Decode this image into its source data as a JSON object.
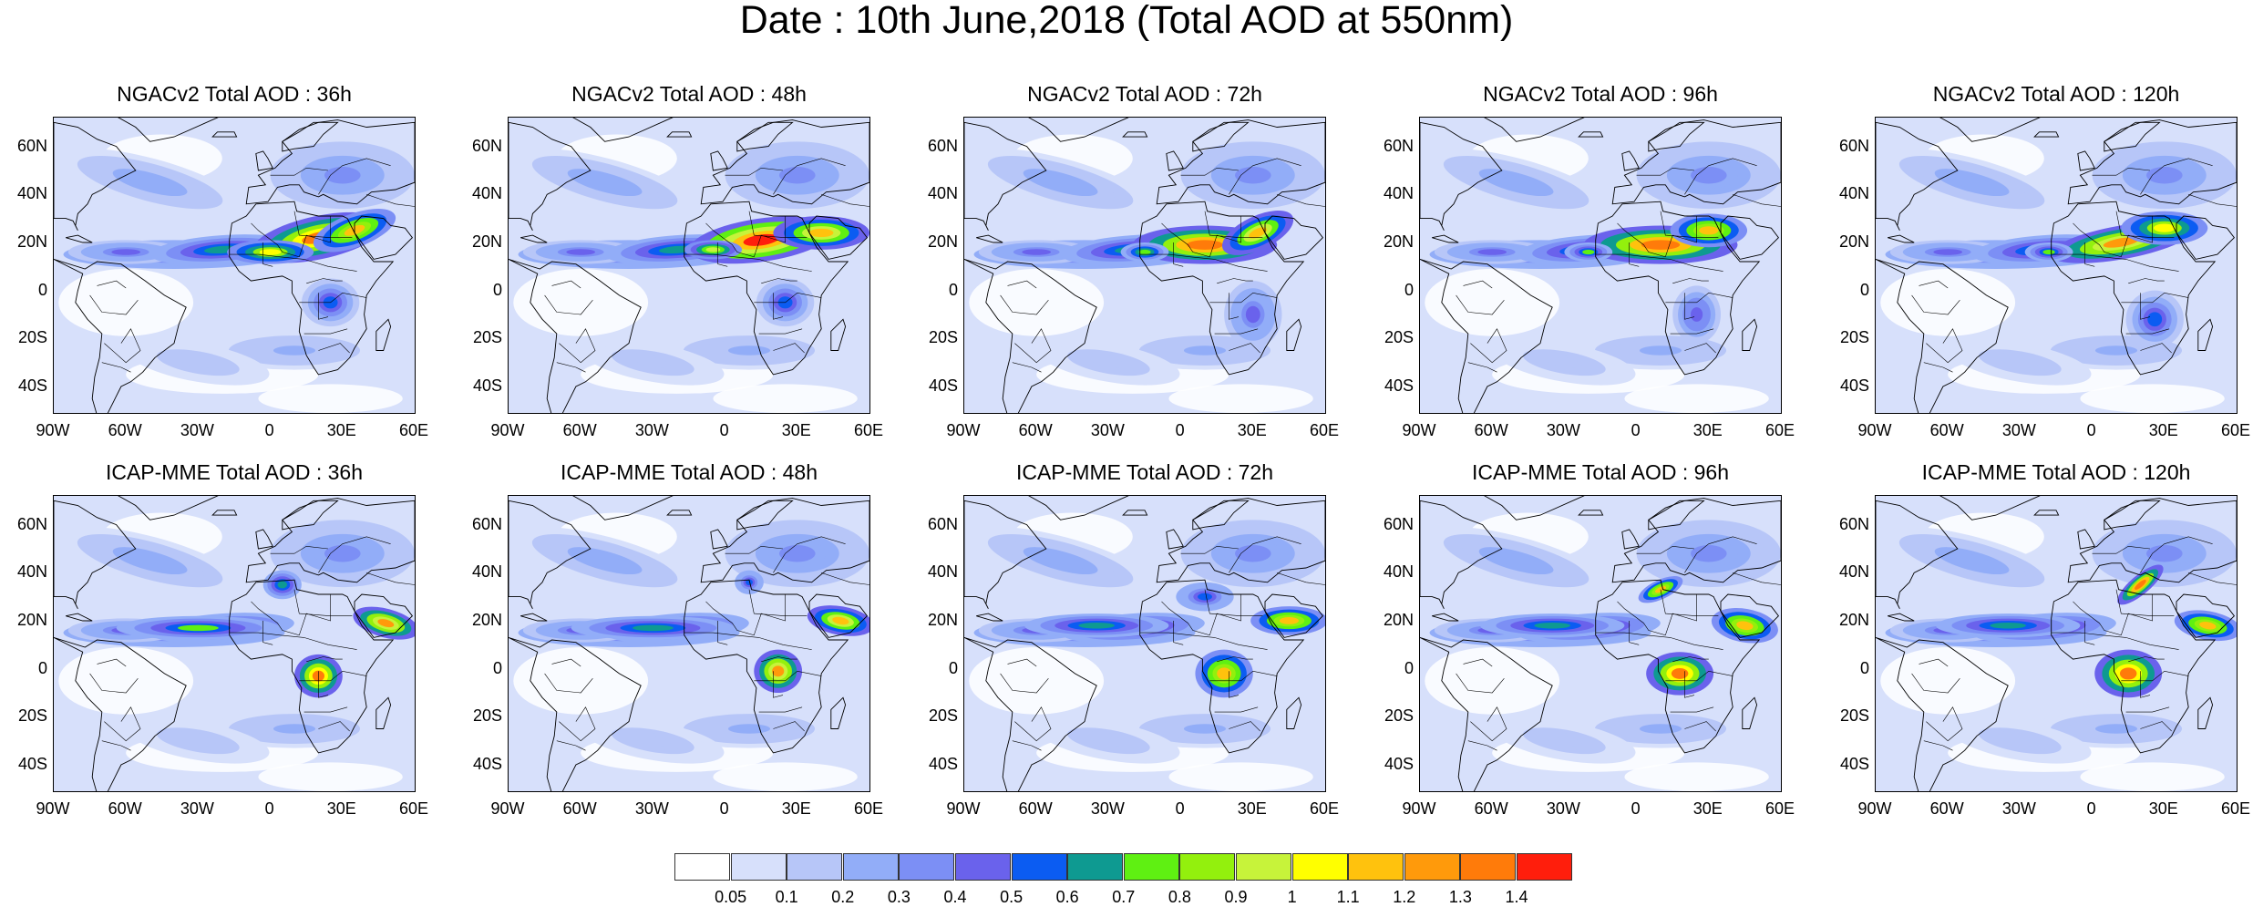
{
  "main_title": "Date : 10th June,2018 (Total AOD at 550nm)",
  "axes": {
    "lat_labels": [
      "60N",
      "40N",
      "20N",
      "0",
      "20S",
      "40S"
    ],
    "lon_labels": [
      "90W",
      "60W",
      "30W",
      "0",
      "30E",
      "60E"
    ]
  },
  "panels": [
    {
      "title": "NGACv2 Total AOD : 36h",
      "model": "NGACv2",
      "lead": "36h"
    },
    {
      "title": "NGACv2 Total AOD : 48h",
      "model": "NGACv2",
      "lead": "48h"
    },
    {
      "title": "NGACv2 Total AOD : 72h",
      "model": "NGACv2",
      "lead": "72h"
    },
    {
      "title": "NGACv2 Total AOD : 96h",
      "model": "NGACv2",
      "lead": "96h"
    },
    {
      "title": "NGACv2 Total AOD : 120h",
      "model": "NGACv2",
      "lead": "120h"
    },
    {
      "title": "ICAP-MME Total AOD : 36h",
      "model": "ICAP-MME",
      "lead": "36h"
    },
    {
      "title": "ICAP-MME Total AOD : 48h",
      "model": "ICAP-MME",
      "lead": "48h"
    },
    {
      "title": "ICAP-MME Total AOD : 72h",
      "model": "ICAP-MME",
      "lead": "72h"
    },
    {
      "title": "ICAP-MME Total AOD : 96h",
      "model": "ICAP-MME",
      "lead": "96h"
    },
    {
      "title": "ICAP-MME Total AOD : 120h",
      "model": "ICAP-MME",
      "lead": "120h"
    }
  ],
  "colorbar": {
    "labels": [
      "0.05",
      "0.1",
      "0.2",
      "0.3",
      "0.4",
      "0.5",
      "0.6",
      "0.7",
      "0.8",
      "0.9",
      "1",
      "1.1",
      "1.2",
      "1.3",
      "1.4"
    ],
    "colors": [
      "#ffffff",
      "#d7e0fb",
      "#b7c6f8",
      "#92adf8",
      "#7c8ff5",
      "#6a62ec",
      "#0b5cf2",
      "#0e9a91",
      "#5ff012",
      "#93f00d",
      "#c7f33a",
      "#ffff00",
      "#ffc20d",
      "#ff9a0b",
      "#ff7b0a",
      "#ff1e0c"
    ]
  }
}
